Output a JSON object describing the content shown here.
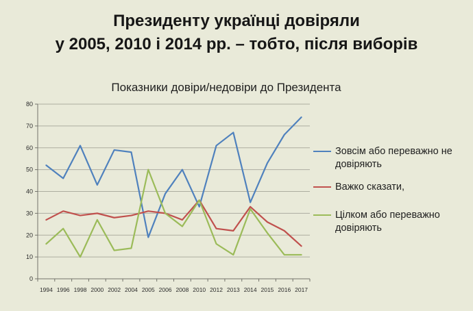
{
  "slide": {
    "title_line1": "Президенту українці довіряли",
    "title_line2": "у 2005, 2010 і 2014 рр. – тобто, після виборів",
    "background_color": "#e9ead9"
  },
  "chart_data": {
    "type": "line",
    "title": "Показники довіри/недовіри до Президента",
    "categories": [
      "1994",
      "1996",
      "1998",
      "2000",
      "2002",
      "2004",
      "2005",
      "2006",
      "2008",
      "2010",
      "2012",
      "2013",
      "2014",
      "2015",
      "2016",
      "2017"
    ],
    "series": [
      {
        "name": "Зовсім або переважно не довіряють",
        "color": "#4f81bd",
        "values": [
          52,
          46,
          61,
          43,
          59,
          58,
          19,
          39,
          50,
          33,
          61,
          67,
          35,
          53,
          66,
          74
        ]
      },
      {
        "name": "Важко сказати,",
        "color": "#c0504d",
        "values": [
          27,
          31,
          29,
          30,
          28,
          29,
          31,
          30,
          27,
          36,
          23,
          22,
          33,
          26,
          22,
          15
        ]
      },
      {
        "name": "Цілком або переважно довіряють",
        "color": "#9bbb59",
        "values": [
          16,
          23,
          10,
          27,
          13,
          14,
          50,
          30,
          24,
          36,
          16,
          11,
          32,
          21,
          11,
          11
        ]
      }
    ],
    "ylim": [
      0,
      80
    ],
    "ytick_step": 10,
    "grid": true,
    "legend_position": "right",
    "xlabel": "",
    "ylabel": ""
  }
}
